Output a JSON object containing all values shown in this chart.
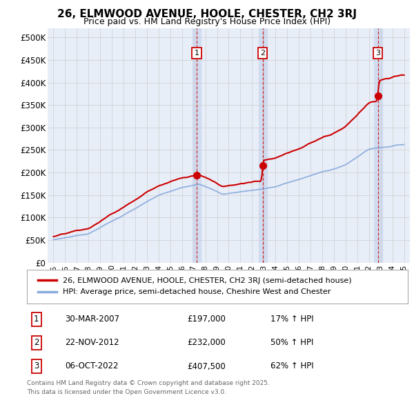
{
  "title": "26, ELMWOOD AVENUE, HOOLE, CHESTER, CH2 3RJ",
  "subtitle": "Price paid vs. HM Land Registry's House Price Index (HPI)",
  "property_label": "26, ELMWOOD AVENUE, HOOLE, CHESTER, CH2 3RJ (semi-detached house)",
  "hpi_label": "HPI: Average price, semi-detached house, Cheshire West and Chester",
  "transactions": [
    {
      "num": 1,
      "date": "30-MAR-2007",
      "price": 197000,
      "hpi_pct": "17% ↑ HPI",
      "x_year": 2007.25
    },
    {
      "num": 2,
      "date": "22-NOV-2012",
      "price": 232000,
      "hpi_pct": "50% ↑ HPI",
      "x_year": 2012.9
    },
    {
      "num": 3,
      "date": "06-OCT-2022",
      "price": 407500,
      "hpi_pct": "62% ↑ HPI",
      "x_year": 2022.77
    }
  ],
  "footnote1": "Contains HM Land Registry data © Crown copyright and database right 2025.",
  "footnote2": "This data is licensed under the Open Government Licence v3.0.",
  "ylim": [
    0,
    520000
  ],
  "yticks": [
    0,
    50000,
    100000,
    150000,
    200000,
    250000,
    300000,
    350000,
    400000,
    450000,
    500000
  ],
  "xlim_start": 1994.5,
  "xlim_end": 2025.5,
  "property_color": "#cc0000",
  "hpi_color": "#88aadd",
  "background_color": "#e8eef8",
  "plot_bg": "#ffffff",
  "grid_color": "#cccccc",
  "span_color": "#d0dcf0"
}
